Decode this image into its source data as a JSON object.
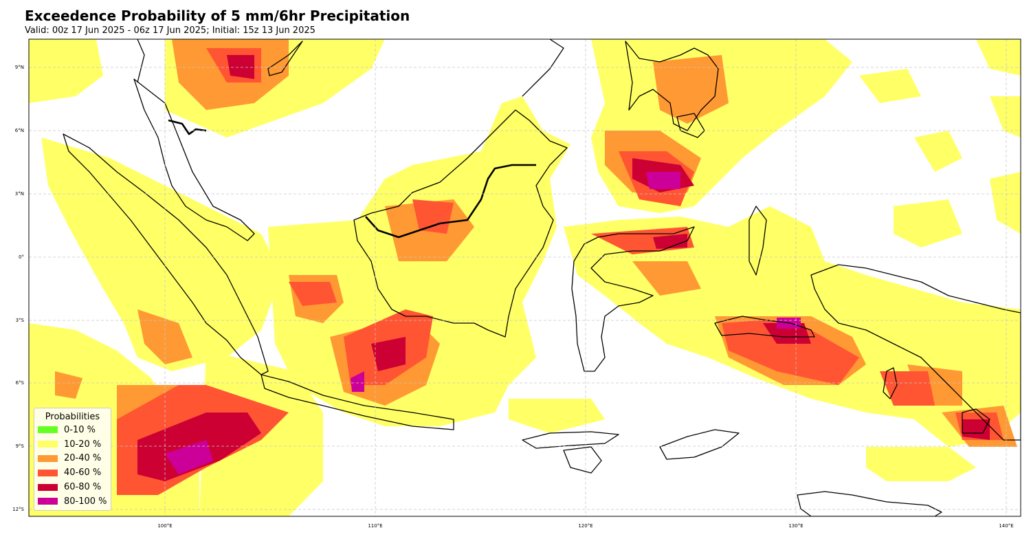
{
  "title": "Exceedence Probability of 5 mm/6hr Precipitation",
  "subtitle": "Valid: 00z 17 Jun 2025 - 06z 17 Jun 2025; Initial: 15z 13 Jun 2025",
  "axes": {
    "lon_ticks": [
      "100°E",
      "110°E",
      "120°E",
      "130°E",
      "140°E"
    ],
    "lat_ticks": [
      "9°N",
      "6°N",
      "3°N",
      "0°",
      "3°S",
      "6°S",
      "9°S",
      "12°S"
    ],
    "grid": true
  },
  "legend": {
    "title": "Probabilities",
    "position": "lower-left",
    "items": [
      {
        "label": "0-10 %",
        "color": "#66ff22"
      },
      {
        "label": "10-20 %",
        "color": "#ffff66"
      },
      {
        "label": "20-40 %",
        "color": "#ff9933"
      },
      {
        "label": "40-60 %",
        "color": "#ff5533"
      },
      {
        "label": "60-80 %",
        "color": "#cc0033"
      },
      {
        "label": "80-100 %",
        "color": "#cc0099"
      }
    ]
  }
}
